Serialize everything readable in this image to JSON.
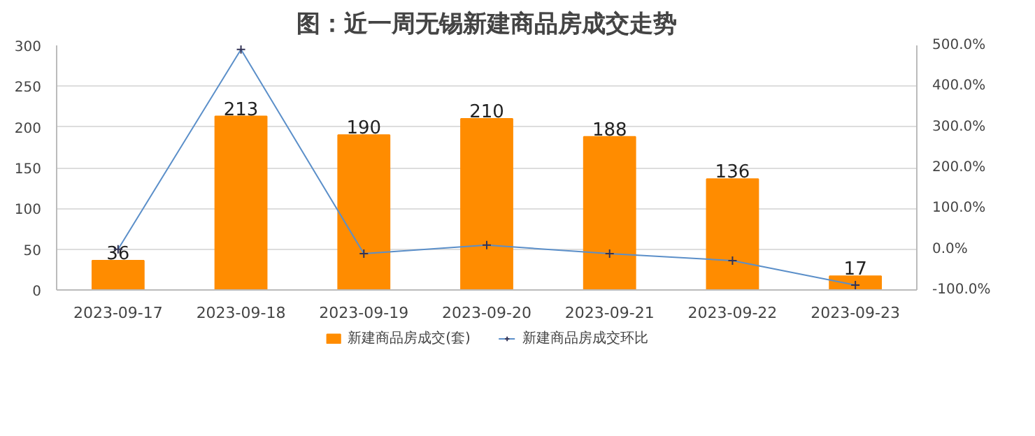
{
  "chart_data": {
    "type": "bar",
    "title": "图：近一周无锡新建商品房成交走势",
    "categories": [
      "2023-09-17",
      "2023-09-18",
      "2023-09-19",
      "2023-09-20",
      "2023-09-21",
      "2023-09-22",
      "2023-09-23"
    ],
    "series": [
      {
        "name": "新建商品房成交(套)",
        "color": "#ff8c00",
        "values": [
          36,
          213,
          190,
          210,
          188,
          136,
          17
        ],
        "value_labels": [
          "36",
          "213",
          "190",
          "210",
          "188",
          "136",
          "17"
        ]
      },
      {
        "name": "新建商品房成交环比",
        "type": "line",
        "axis": "y2",
        "color": "#5b8fc9",
        "marker": "cross",
        "values": [
          0,
          490,
          -11,
          10,
          -11,
          -28,
          -88
        ]
      }
    ],
    "ylim": [
      0,
      300
    ],
    "yticks": [
      0,
      50,
      100,
      150,
      200,
      250,
      300
    ],
    "y2lim": [
      -100,
      500
    ],
    "y2ticks": [
      {
        "value": -100,
        "label": "-100.0%"
      },
      {
        "value": 0,
        "label": "0.0%"
      },
      {
        "value": 100,
        "label": "100.0%"
      },
      {
        "value": 200,
        "label": "200.0%"
      },
      {
        "value": 300,
        "label": "300.0%"
      },
      {
        "value": 400,
        "label": "400.0%"
      },
      {
        "value": 500,
        "label": "500.0%"
      }
    ],
    "grid": "y",
    "legend": "bottom"
  }
}
